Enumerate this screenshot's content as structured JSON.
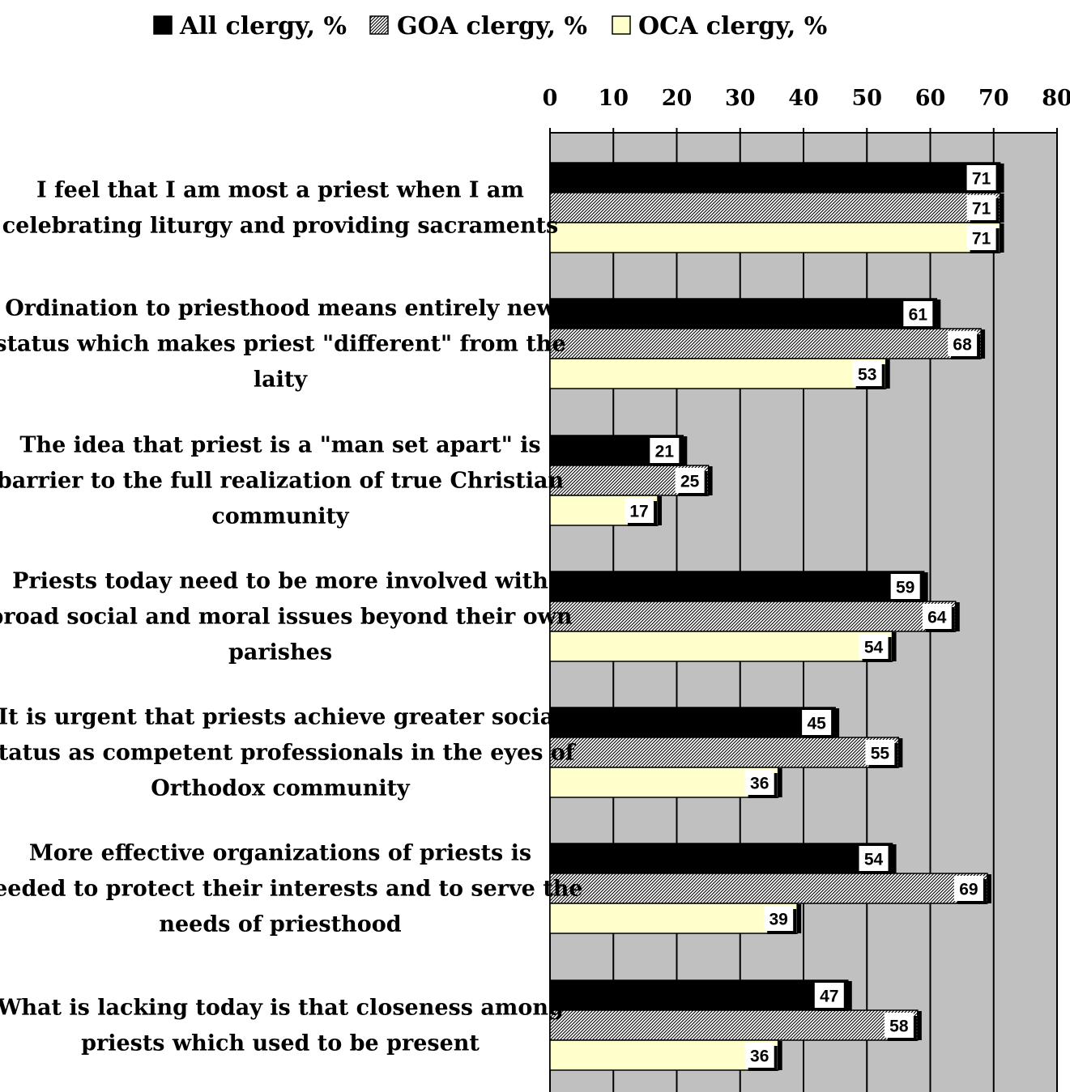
{
  "chart_data": {
    "type": "bar",
    "orientation": "horizontal",
    "title": "",
    "xlabel": "",
    "ylabel": "",
    "xlim": [
      0,
      80
    ],
    "ticks": [
      0,
      10,
      20,
      30,
      40,
      50,
      60,
      70,
      80
    ],
    "tick_labels": [
      "0",
      "10",
      "20",
      "30",
      "40",
      "50",
      "60",
      "70",
      "80"
    ],
    "axis_position": "top",
    "grid": true,
    "legend_position": "top",
    "colors": {
      "plot_background": "#c0c0c0",
      "all": "#000000",
      "goa_pattern": "#000000",
      "oca": "#ffffcc",
      "gridline": "#000000"
    },
    "categories": [
      [
        "I feel that I am most a priest when I am",
        "celebrating liturgy and providing sacraments"
      ],
      [
        "Ordination to priesthood means entirely new",
        "status which makes priest \"different\" from the",
        "laity"
      ],
      [
        "The idea that priest is a \"man set apart\" is",
        "barrier to the full realization of true Christian",
        "community"
      ],
      [
        "Priests today need to be more involved with",
        "broad social and moral issues beyond their own",
        "parishes"
      ],
      [
        "It is urgent that priests achieve greater social",
        "status as competent professionals in the eyes of",
        "Orthodox community"
      ],
      [
        "More effective organizations of priests is",
        "needed to protect their interests and to serve the",
        "needs of priesthood"
      ],
      [
        "What is lacking today is that closeness among",
        "priests which used to be present"
      ]
    ],
    "series": [
      {
        "name": "All clergy, %",
        "pattern": "solid",
        "values": [
          71,
          61,
          21,
          59,
          45,
          54,
          47
        ]
      },
      {
        "name": "GOA clergy, %",
        "pattern": "diagonal-hatch",
        "values": [
          71,
          68,
          25,
          64,
          55,
          69,
          58
        ]
      },
      {
        "name": "OCA clergy, %",
        "pattern": "light-fill",
        "values": [
          71,
          53,
          17,
          54,
          36,
          39,
          36
        ]
      }
    ]
  }
}
